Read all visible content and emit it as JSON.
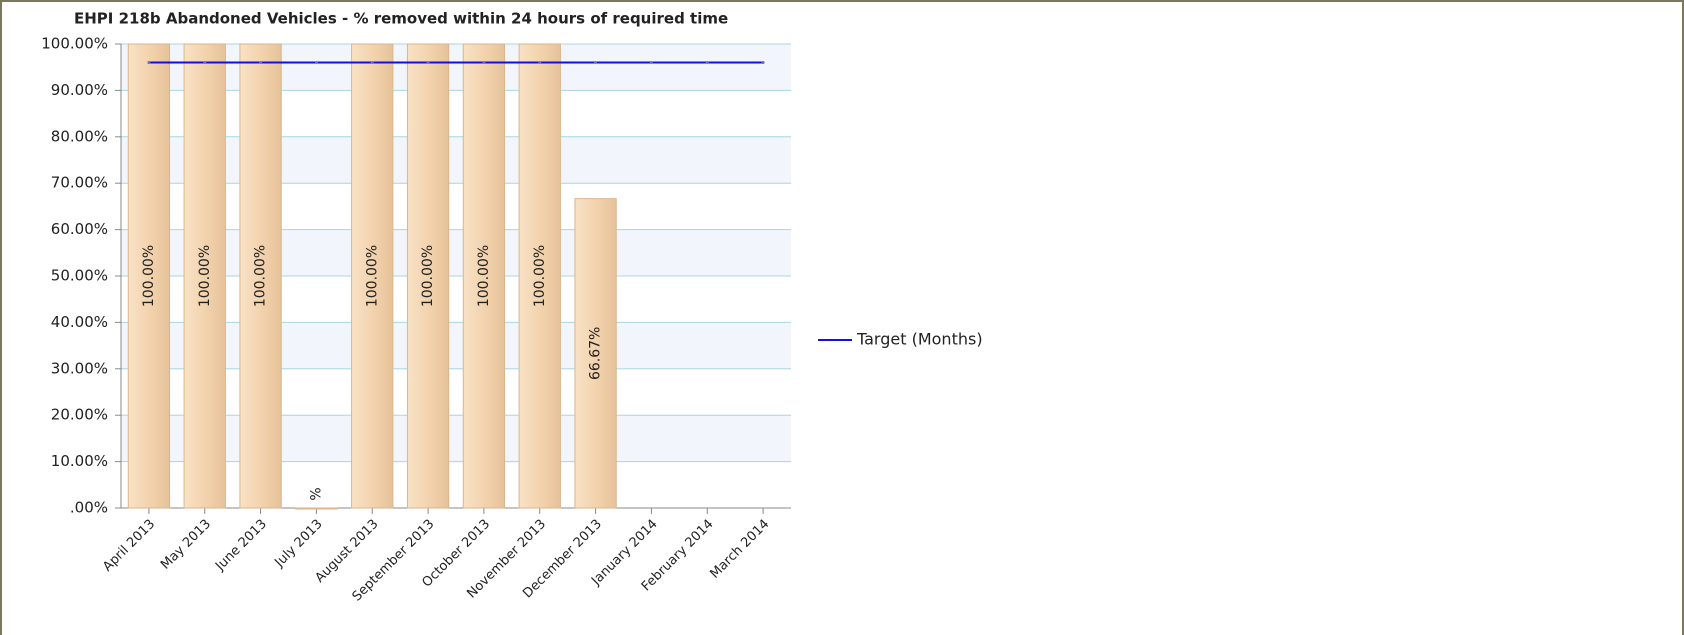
{
  "chart_data": {
    "type": "bar",
    "title": "EHPI 218b Abandoned Vehicles - % removed within 24 hours of required time",
    "categories": [
      "April 2013",
      "May 2013",
      "June 2013",
      "July 2013",
      "August 2013",
      "September 2013",
      "October 2013",
      "November 2013",
      "December 2013",
      "January 2014",
      "February 2014",
      "March 2014"
    ],
    "bars": {
      "color": "#f3d3ae",
      "values": [
        100,
        100,
        100,
        0,
        100,
        100,
        100,
        100,
        66.67,
        null,
        null,
        null
      ],
      "value_labels": [
        "100.00%",
        "100.00%",
        "100.00%",
        "%",
        "100.00%",
        "100.00%",
        "100.00%",
        "100.00%",
        "66.67%",
        null,
        null,
        null
      ]
    },
    "series": [
      {
        "name": "Target (Months)",
        "color": "#1010e0",
        "values": [
          96,
          96,
          96,
          96,
          96,
          96,
          96,
          96,
          96,
          96,
          96,
          96
        ]
      }
    ],
    "ylim": [
      0,
      100
    ],
    "yticks": [
      {
        "value": 0,
        "label": ".00%"
      },
      {
        "value": 10,
        "label": "10.00%"
      },
      {
        "value": 20,
        "label": "20.00%"
      },
      {
        "value": 30,
        "label": "30.00%"
      },
      {
        "value": 40,
        "label": "40.00%"
      },
      {
        "value": 50,
        "label": "50.00%"
      },
      {
        "value": 60,
        "label": "60.00%"
      },
      {
        "value": 70,
        "label": "70.00%"
      },
      {
        "value": 80,
        "label": "80.00%"
      },
      {
        "value": 90,
        "label": "90.00%"
      },
      {
        "value": 100,
        "label": "100.00%"
      }
    ],
    "grid": true,
    "legend": "right"
  }
}
